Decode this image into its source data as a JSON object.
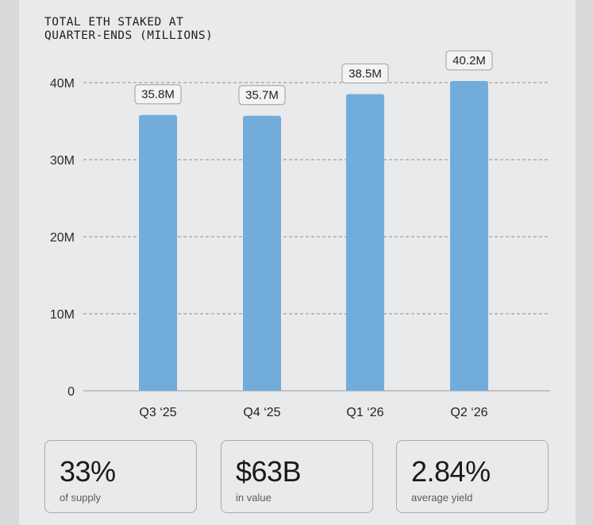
{
  "chart_data": {
    "type": "bar",
    "title": "TOTAL ETH STAKED AT\nQUARTER-ENDS (MILLIONS)",
    "categories": [
      "Q3 ‘25",
      "Q4 ‘25",
      "Q1 ‘26",
      "Q2 ‘26"
    ],
    "values": [
      35.8,
      35.7,
      38.5,
      40.2
    ],
    "value_labels": [
      "35.8M",
      "35.7M",
      "38.5M",
      "40.2M"
    ],
    "ylim": [
      0,
      40
    ],
    "yticks": [
      0,
      10,
      20,
      30,
      40
    ],
    "ytick_labels": [
      "0",
      "10M",
      "20M",
      "30M",
      "40M"
    ],
    "grid": true,
    "bar_color": "#72acdb"
  },
  "stats": [
    {
      "value": "33%",
      "label": "of supply"
    },
    {
      "value": "$63B",
      "label": "in value"
    },
    {
      "value": "2.84%",
      "label": "average yield"
    }
  ]
}
